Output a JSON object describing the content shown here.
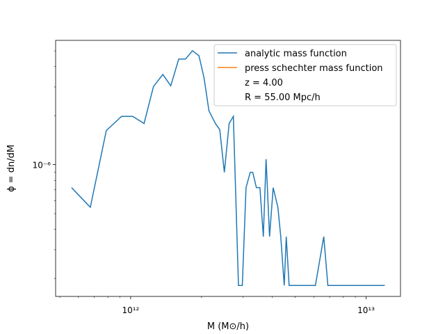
{
  "chart_data": {
    "type": "line",
    "xscale": "log",
    "yscale": "log",
    "xlabel": "M (M⊙/h)",
    "ylabel": "ϕ = dn/dM",
    "xlim": [
      480000000000.0,
      14000000000000.0
    ],
    "ylim": [
      1.55e-07,
      5.8e-06
    ],
    "xticks": [
      {
        "value": 1000000000000.0,
        "label": "10¹²"
      },
      {
        "value": 10000000000000.0,
        "label": "10¹³"
      }
    ],
    "yticks": [
      {
        "value": 1e-06,
        "label": "10⁻⁶"
      }
    ],
    "xminorticks": [
      500000000000.0,
      600000000000.0,
      700000000000.0,
      800000000000.0,
      900000000000.0,
      2000000000000.0,
      3000000000000.0,
      4000000000000.0,
      5000000000000.0,
      6000000000000.0,
      7000000000000.0,
      8000000000000.0,
      9000000000000.0
    ],
    "yminorticks": [
      2e-07,
      3e-07,
      4e-07,
      5e-07,
      6e-07,
      7e-07,
      8e-07,
      9e-07,
      2e-06,
      3e-06,
      4e-06,
      5e-06
    ],
    "legend": "upper right",
    "legend_extra": [
      "z = 4.00",
      "R = 55.00 Mpc/h"
    ],
    "series": [
      {
        "name": "analytic mass function",
        "color": "#1f77b4",
        "x": [
          561000000000.0,
          674000000000.0,
          788000000000.0,
          915000000000.0,
          1020000000000.0,
          1140000000000.0,
          1250000000000.0,
          1370000000000.0,
          1480000000000.0,
          1600000000000.0,
          1710000000000.0,
          1830000000000.0,
          1950000000000.0,
          2050000000000.0,
          2150000000000.0,
          2290000000000.0,
          2390000000000.0,
          2500000000000.0,
          2620000000000.0,
          2730000000000.0,
          2870000000000.0,
          2980000000000.0,
          3090000000000.0,
          3220000000000.0,
          3300000000000.0,
          3420000000000.0,
          3540000000000.0,
          3660000000000.0,
          3760000000000.0,
          3890000000000.0,
          4030000000000.0,
          4220000000000.0,
          4340000000000.0,
          4490000000000.0,
          4580000000000.0,
          4710000000000.0,
          6090000000000.0,
          6610000000000.0,
          6880000000000.0,
          12000000000000.0
        ],
        "values": [
          7.22e-07,
          5.47e-07,
          1.62e-06,
          1.98e-06,
          1.98e-06,
          1.79e-06,
          3.02e-06,
          3.58e-06,
          3.05e-06,
          4.45e-06,
          4.45e-06,
          5.01e-06,
          4.67e-06,
          3.41e-06,
          2.14e-06,
          1.79e-06,
          1.64e-06,
          8.97e-07,
          1.79e-06,
          1.98e-06,
          1.81e-07,
          1.81e-07,
          7.22e-07,
          8.97e-07,
          8.97e-07,
          7.22e-07,
          7.22e-07,
          3.61e-07,
          1.08e-06,
          3.61e-07,
          7.22e-07,
          5.47e-07,
          3.61e-07,
          1.81e-07,
          3.61e-07,
          1.81e-07,
          1.81e-07,
          3.61e-07,
          1.81e-07,
          1.81e-07
        ]
      },
      {
        "name": "press schechter mass function",
        "color": "#ff7f0e",
        "x": [],
        "values": []
      }
    ]
  }
}
